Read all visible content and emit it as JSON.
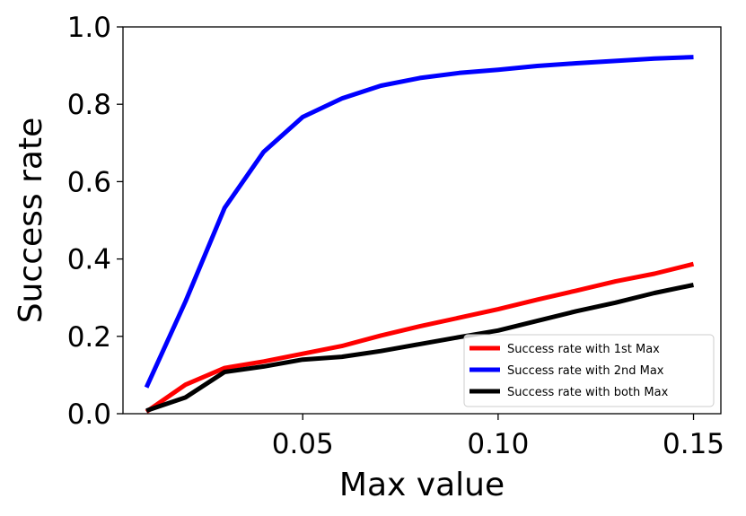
{
  "chart_data": {
    "type": "line",
    "title": "",
    "xlabel": "Max value",
    "ylabel": "Success rate",
    "xlim": [
      0.004,
      0.157
    ],
    "ylim": [
      0.0,
      1.0
    ],
    "xticks": [
      0.05,
      0.1,
      0.15
    ],
    "xtick_labels": [
      "0.05",
      "0.10",
      "0.15"
    ],
    "yticks": [
      0.0,
      0.2,
      0.4,
      0.6,
      0.8,
      1.0
    ],
    "ytick_labels": [
      "0.0",
      "0.2",
      "0.4",
      "0.6",
      "0.8",
      "1.0"
    ],
    "grid": false,
    "legend_position": "bottom-right",
    "x": [
      0.01,
      0.02,
      0.03,
      0.04,
      0.05,
      0.06,
      0.07,
      0.08,
      0.09,
      0.1,
      0.11,
      0.12,
      0.13,
      0.14,
      0.15
    ],
    "series": [
      {
        "name": "Success rate with 1st Max",
        "color": "#ff0000",
        "values": [
          0.005,
          0.075,
          0.118,
          0.135,
          0.155,
          0.175,
          0.202,
          0.226,
          0.248,
          0.27,
          0.295,
          0.318,
          0.342,
          0.362,
          0.387
        ]
      },
      {
        "name": "Success rate with 2nd Max",
        "color": "#0000ff",
        "values": [
          0.068,
          0.29,
          0.532,
          0.677,
          0.767,
          0.815,
          0.848,
          0.868,
          0.881,
          0.889,
          0.899,
          0.906,
          0.912,
          0.918,
          0.922
        ]
      },
      {
        "name": "Success rate with both Max",
        "color": "#000000",
        "values": [
          0.008,
          0.042,
          0.108,
          0.122,
          0.14,
          0.147,
          0.162,
          0.18,
          0.198,
          0.215,
          0.24,
          0.265,
          0.287,
          0.312,
          0.333
        ]
      }
    ]
  }
}
